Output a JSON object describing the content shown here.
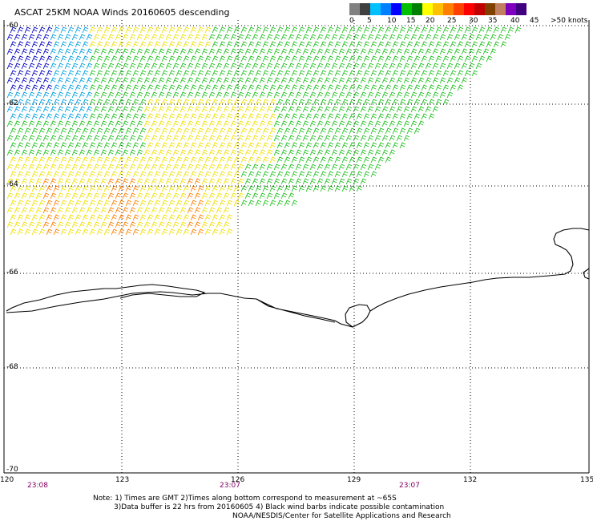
{
  "title": "ASCAT 25KM NOAA Winds 20160605 descending",
  "legend": {
    "colors": [
      "#808080",
      "#404040",
      "#00c0ff",
      "#0080ff",
      "#0000ff",
      "#00c000",
      "#008000",
      "#ffff00",
      "#ffc000",
      "#ff8000",
      "#ff4000",
      "#ff0000",
      "#c00000",
      "#804000",
      "#c08060",
      "#8000c0",
      "#400080"
    ],
    "labels": [
      "0",
      "5",
      "10",
      "15",
      "20",
      "25",
      "30",
      "35",
      "40",
      "45",
      ">50 knots"
    ]
  },
  "axes": {
    "lat_labels": [
      "-60",
      "-62",
      "-64",
      "-66",
      "-68",
      "-70"
    ],
    "lon_labels": [
      "120",
      "123",
      "126",
      "129",
      "132",
      "135"
    ]
  },
  "times": [
    "23:08",
    "23:07",
    "23:07"
  ],
  "notes": {
    "line1": "Note: 1) Times are GMT 2)Times along bottom correspond to measurement at ~65S",
    "line2": "3)Data buffer is 22 hrs from 20160605 4) Black wind barbs indicate possible contamination",
    "line3": "NOAA/NESDIS/Center for Satellite Applications and Research"
  }
}
